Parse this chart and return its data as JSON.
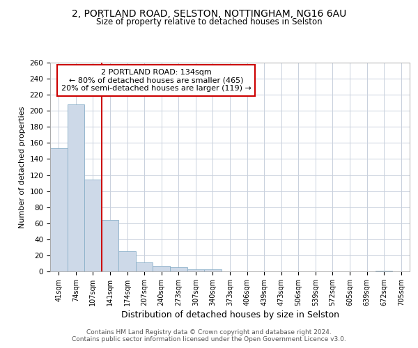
{
  "title1": "2, PORTLAND ROAD, SELSTON, NOTTINGHAM, NG16 6AU",
  "title2": "Size of property relative to detached houses in Selston",
  "xlabel": "Distribution of detached houses by size in Selston",
  "ylabel": "Number of detached properties",
  "categories": [
    "41sqm",
    "74sqm",
    "107sqm",
    "141sqm",
    "174sqm",
    "207sqm",
    "240sqm",
    "273sqm",
    "307sqm",
    "340sqm",
    "373sqm",
    "406sqm",
    "439sqm",
    "473sqm",
    "506sqm",
    "539sqm",
    "572sqm",
    "605sqm",
    "639sqm",
    "672sqm",
    "705sqm"
  ],
  "values": [
    153,
    208,
    114,
    64,
    25,
    11,
    7,
    5,
    3,
    3,
    0,
    0,
    0,
    0,
    0,
    0,
    0,
    0,
    0,
    1,
    0
  ],
  "bar_color": "#cdd9e8",
  "bar_edge_color": "#8aafc8",
  "red_line_index": 3,
  "annotation_title": "2 PORTLAND ROAD: 134sqm",
  "annotation_line1": "← 80% of detached houses are smaller (465)",
  "annotation_line2": "20% of semi-detached houses are larger (119) →",
  "annotation_box_color": "#ffffff",
  "annotation_border_color": "#cc0000",
  "red_line_color": "#cc0000",
  "background_color": "#ffffff",
  "plot_bg_color": "#ffffff",
  "grid_color": "#c8d0dc",
  "footer_line1": "Contains HM Land Registry data © Crown copyright and database right 2024.",
  "footer_line2": "Contains public sector information licensed under the Open Government Licence v3.0.",
  "ylim": [
    0,
    260
  ],
  "yticks": [
    0,
    20,
    40,
    60,
    80,
    100,
    120,
    140,
    160,
    180,
    200,
    220,
    240,
    260
  ]
}
